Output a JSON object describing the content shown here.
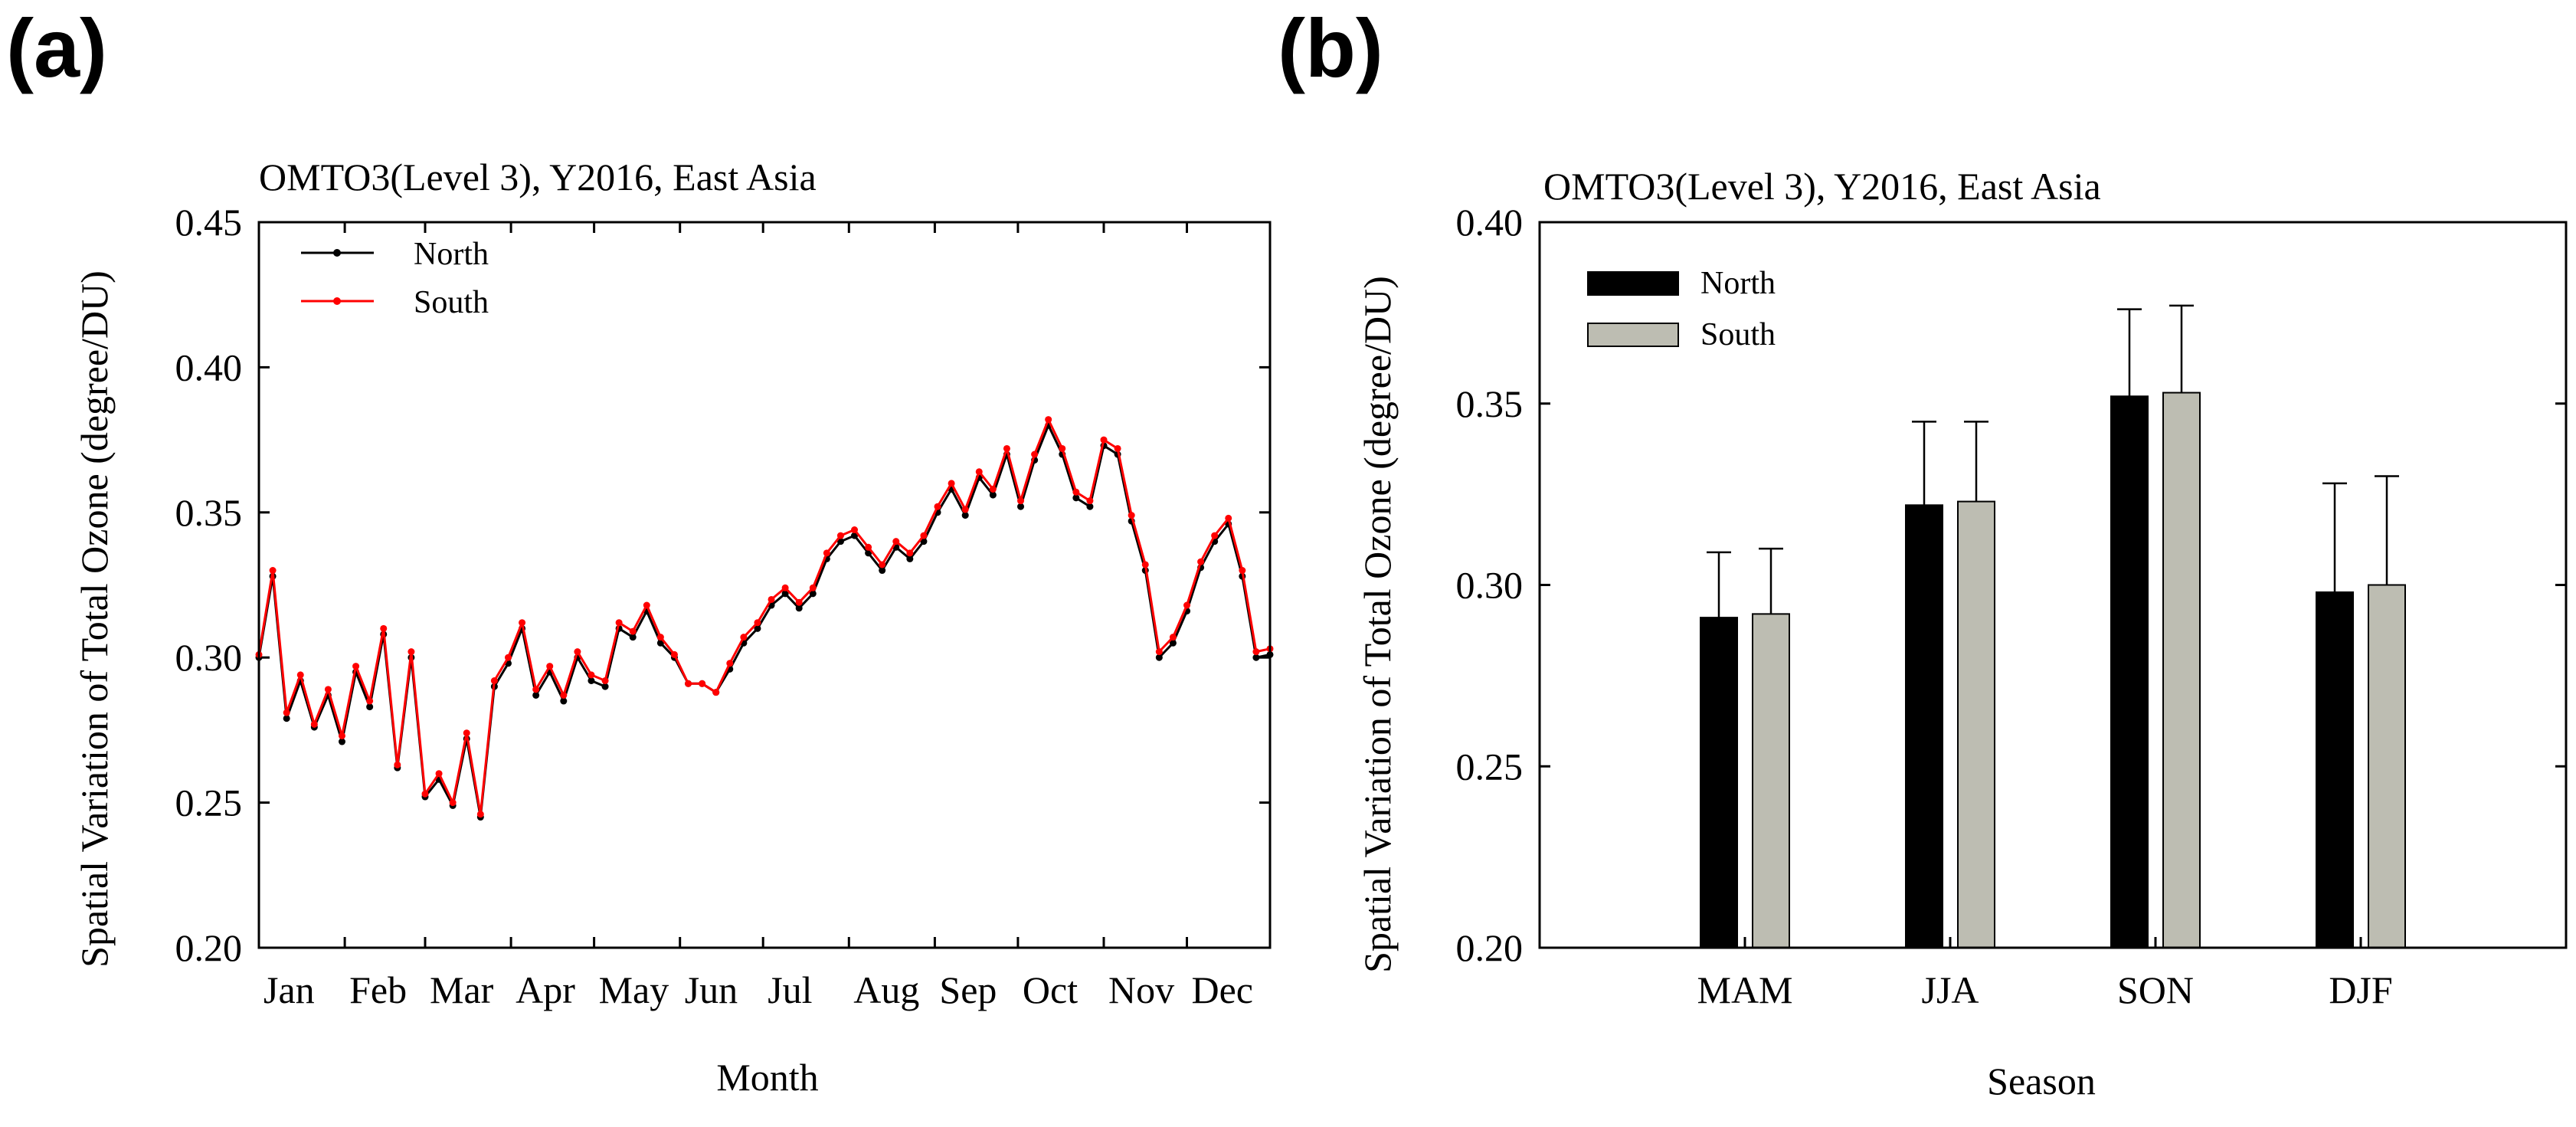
{
  "panels": [
    {
      "letter": "(a)"
    },
    {
      "letter": "(b)"
    }
  ],
  "colors": {
    "north": "#000000",
    "south": "#ff0000",
    "bar_north": "#000000",
    "bar_south": "#bdbdb2"
  },
  "chart_data": [
    {
      "type": "line",
      "title": "OMTO3(Level 3), Y2016, East Asia",
      "xlabel": "Month",
      "ylabel": "Spatial Variation of Total Ozone (degree/DU)",
      "ylim": [
        0.2,
        0.45
      ],
      "yticks": [
        "0.20",
        "0.25",
        "0.30",
        "0.35",
        "0.40",
        "0.45"
      ],
      "x_range": [
        "2016-01-01",
        "2016-12-31"
      ],
      "xtick_labels": [
        "Jan",
        "Feb",
        "Mar",
        "Apr",
        "May",
        "Jun",
        "Jul",
        "Aug",
        "Sep",
        "Oct",
        "Nov",
        "Dec"
      ],
      "legend": [
        "North",
        "South"
      ],
      "legend_position": "top-left",
      "grid": false,
      "series": [
        {
          "name": "North",
          "x": [
            "2016-01-01",
            "2016-01-06",
            "2016-01-11",
            "2016-01-16",
            "2016-01-21",
            "2016-01-26",
            "2016-01-31",
            "2016-02-05",
            "2016-02-10",
            "2016-02-15",
            "2016-02-20",
            "2016-02-25",
            "2016-03-01",
            "2016-03-06",
            "2016-03-11",
            "2016-03-16",
            "2016-03-21",
            "2016-03-26",
            "2016-03-31",
            "2016-04-05",
            "2016-04-10",
            "2016-04-15",
            "2016-04-20",
            "2016-04-25",
            "2016-04-30",
            "2016-05-05",
            "2016-05-10",
            "2016-05-15",
            "2016-05-20",
            "2016-05-25",
            "2016-05-30",
            "2016-06-04",
            "2016-06-09",
            "2016-06-14",
            "2016-06-19",
            "2016-06-24",
            "2016-06-29",
            "2016-07-04",
            "2016-07-09",
            "2016-07-14",
            "2016-07-19",
            "2016-07-24",
            "2016-07-29",
            "2016-08-03",
            "2016-08-08",
            "2016-08-13",
            "2016-08-18",
            "2016-08-23",
            "2016-08-28",
            "2016-09-02",
            "2016-09-07",
            "2016-09-12",
            "2016-09-17",
            "2016-09-22",
            "2016-09-27",
            "2016-10-02",
            "2016-10-07",
            "2016-10-12",
            "2016-10-17",
            "2016-10-22",
            "2016-10-27",
            "2016-11-01",
            "2016-11-06",
            "2016-11-11",
            "2016-11-16",
            "2016-11-21",
            "2016-11-26",
            "2016-12-01",
            "2016-12-06",
            "2016-12-11",
            "2016-12-16",
            "2016-12-21",
            "2016-12-26",
            "2016-12-31"
          ],
          "values": [
            0.3,
            0.328,
            0.279,
            0.292,
            0.276,
            0.287,
            0.271,
            0.295,
            0.283,
            0.308,
            0.262,
            0.3,
            0.252,
            0.258,
            0.249,
            0.272,
            0.245,
            0.29,
            0.298,
            0.31,
            0.287,
            0.295,
            0.285,
            0.3,
            0.292,
            0.29,
            0.31,
            0.307,
            0.316,
            0.305,
            0.3,
            0.291,
            0.291,
            0.288,
            0.296,
            0.305,
            0.31,
            0.318,
            0.322,
            0.317,
            0.322,
            0.334,
            0.34,
            0.342,
            0.336,
            0.33,
            0.338,
            0.334,
            0.34,
            0.35,
            0.358,
            0.349,
            0.362,
            0.356,
            0.37,
            0.352,
            0.368,
            0.38,
            0.37,
            0.355,
            0.352,
            0.373,
            0.37,
            0.347,
            0.33,
            0.3,
            0.305,
            0.316,
            0.331,
            0.34,
            0.346,
            0.328,
            0.3,
            0.301
          ]
        },
        {
          "name": "South",
          "x": [
            "2016-01-01",
            "2016-01-06",
            "2016-01-11",
            "2016-01-16",
            "2016-01-21",
            "2016-01-26",
            "2016-01-31",
            "2016-02-05",
            "2016-02-10",
            "2016-02-15",
            "2016-02-20",
            "2016-02-25",
            "2016-03-01",
            "2016-03-06",
            "2016-03-11",
            "2016-03-16",
            "2016-03-21",
            "2016-03-26",
            "2016-03-31",
            "2016-04-05",
            "2016-04-10",
            "2016-04-15",
            "2016-04-20",
            "2016-04-25",
            "2016-04-30",
            "2016-05-05",
            "2016-05-10",
            "2016-05-15",
            "2016-05-20",
            "2016-05-25",
            "2016-05-30",
            "2016-06-04",
            "2016-06-09",
            "2016-06-14",
            "2016-06-19",
            "2016-06-24",
            "2016-06-29",
            "2016-07-04",
            "2016-07-09",
            "2016-07-14",
            "2016-07-19",
            "2016-07-24",
            "2016-07-29",
            "2016-08-03",
            "2016-08-08",
            "2016-08-13",
            "2016-08-18",
            "2016-08-23",
            "2016-08-28",
            "2016-09-02",
            "2016-09-07",
            "2016-09-12",
            "2016-09-17",
            "2016-09-22",
            "2016-09-27",
            "2016-10-02",
            "2016-10-07",
            "2016-10-12",
            "2016-10-17",
            "2016-10-22",
            "2016-10-27",
            "2016-11-01",
            "2016-11-06",
            "2016-11-11",
            "2016-11-16",
            "2016-11-21",
            "2016-11-26",
            "2016-12-01",
            "2016-12-06",
            "2016-12-11",
            "2016-12-16",
            "2016-12-21",
            "2016-12-26",
            "2016-12-31"
          ],
          "values": [
            0.301,
            0.33,
            0.281,
            0.294,
            0.277,
            0.289,
            0.273,
            0.297,
            0.285,
            0.31,
            0.263,
            0.302,
            0.253,
            0.26,
            0.25,
            0.274,
            0.246,
            0.292,
            0.3,
            0.312,
            0.289,
            0.297,
            0.287,
            0.302,
            0.294,
            0.292,
            0.312,
            0.309,
            0.318,
            0.307,
            0.301,
            0.291,
            0.291,
            0.288,
            0.298,
            0.307,
            0.312,
            0.32,
            0.324,
            0.319,
            0.324,
            0.336,
            0.342,
            0.344,
            0.338,
            0.332,
            0.34,
            0.336,
            0.342,
            0.352,
            0.36,
            0.351,
            0.364,
            0.358,
            0.372,
            0.354,
            0.37,
            0.382,
            0.372,
            0.357,
            0.354,
            0.375,
            0.372,
            0.349,
            0.332,
            0.302,
            0.307,
            0.318,
            0.333,
            0.342,
            0.348,
            0.33,
            0.302,
            0.303
          ]
        }
      ]
    },
    {
      "type": "bar",
      "title": "OMTO3(Level 3), Y2016, East Asia",
      "xlabel": "Season",
      "ylabel": "Spatial Variation of Total Ozone (degree/DU)",
      "ylim": [
        0.2,
        0.4
      ],
      "yticks": [
        "0.20",
        "0.25",
        "0.30",
        "0.35",
        "0.40"
      ],
      "categories": [
        "MAM",
        "JJA",
        "SON",
        "DJF"
      ],
      "legend": [
        "North",
        "South"
      ],
      "legend_position": "top-left",
      "grid": false,
      "series": [
        {
          "name": "North",
          "values": [
            0.291,
            0.322,
            0.352,
            0.298
          ],
          "error": [
            0.018,
            0.023,
            0.024,
            0.03
          ]
        },
        {
          "name": "South",
          "values": [
            0.292,
            0.323,
            0.353,
            0.3
          ],
          "error": [
            0.018,
            0.022,
            0.024,
            0.03
          ]
        }
      ]
    }
  ]
}
